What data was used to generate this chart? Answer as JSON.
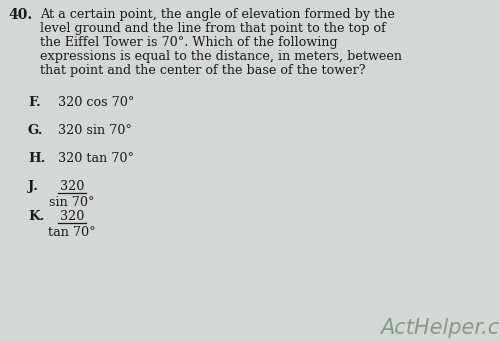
{
  "question_number": "40.",
  "question_text_lines": [
    "At a certain point, the angle of elevation formed by the",
    "level ground and the line from that point to the top of",
    "the Eiffel Tower is 70°. Which of the following",
    "expressions is equal to the distance, in meters, between",
    "that point and the center of the base of the tower?"
  ],
  "options": [
    {
      "label": "F.",
      "numerator": "320 cos 70°",
      "denominator": null
    },
    {
      "label": "G.",
      "numerator": "320 sin 70°",
      "denominator": null
    },
    {
      "label": "H.",
      "numerator": "320 tan 70°",
      "denominator": null
    },
    {
      "label": "J.",
      "numerator": "320",
      "denominator": "sin 70°"
    },
    {
      "label": "K.",
      "numerator": "320",
      "denominator": "tan 70°"
    }
  ],
  "watermark": "ActHelper.com",
  "bg_color": "#d4d8d4",
  "text_color": "#1a1a1a",
  "watermark_color": "#8a9a8a",
  "qnum_fontsize": 10,
  "body_fontsize": 9.2,
  "option_label_fontsize": 9.5,
  "option_text_fontsize": 9.2,
  "watermark_fontsize": 15,
  "fig_width": 5.0,
  "fig_height": 3.41,
  "dpi": 100
}
